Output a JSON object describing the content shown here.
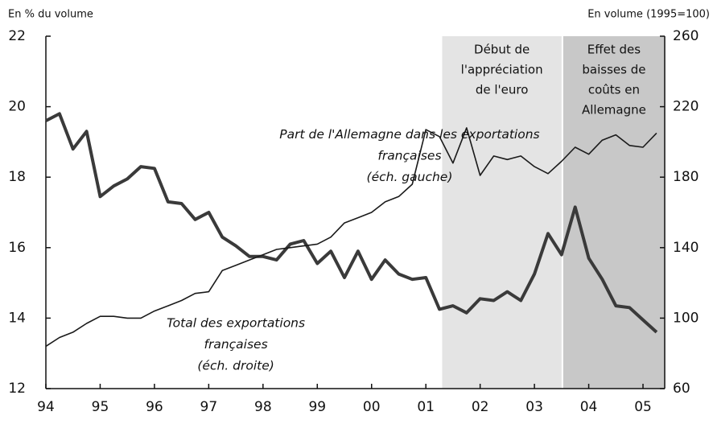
{
  "chart_data": {
    "type": "line",
    "y_label": "En % du volume",
    "y2_label": "En volume (1995=100)",
    "x": [
      1994.0,
      1994.25,
      1994.5,
      1994.75,
      1995.0,
      1995.25,
      1995.5,
      1995.75,
      1996.0,
      1996.25,
      1996.5,
      1996.75,
      1997.0,
      1997.25,
      1997.5,
      1997.75,
      1998.0,
      1998.25,
      1998.5,
      1998.75,
      1999.0,
      1999.25,
      1999.5,
      1999.75,
      2000.0,
      2000.25,
      2000.5,
      2000.75,
      2001.0,
      2001.25,
      2001.5,
      2001.75,
      2002.0,
      2002.25,
      2002.5,
      2002.75,
      2003.0,
      2003.25,
      2003.5,
      2003.75,
      2004.0,
      2004.25,
      2004.5,
      2004.75,
      2005.0,
      2005.25
    ],
    "series": [
      {
        "color": "#3a3a3a",
        "width": 4,
        "values": [
          19.6,
          19.8,
          18.8,
          19.3,
          17.45,
          17.75,
          17.95,
          18.3,
          18.25,
          17.3,
          17.25,
          16.8,
          17.0,
          16.3,
          16.05,
          15.75,
          15.75,
          15.65,
          16.1,
          16.2,
          15.55,
          15.9,
          15.15,
          15.9,
          15.1,
          15.65,
          15.25,
          15.1,
          15.15,
          14.25,
          14.35,
          14.15,
          14.55,
          14.5,
          14.75,
          14.5,
          15.25,
          16.4,
          15.8,
          17.15,
          15.7,
          15.1,
          14.35,
          14.3,
          13.95,
          13.6
        ]
      },
      {
        "color": "#1a1a1a",
        "width": 1.6,
        "axis": "y2",
        "values": [
          84,
          89,
          92,
          97,
          101,
          101,
          100,
          100,
          104,
          107,
          110,
          114,
          115,
          127,
          130,
          133,
          136,
          139,
          140,
          141,
          142,
          146,
          154,
          157,
          160,
          166,
          169,
          176,
          207,
          203,
          188,
          208,
          181,
          192,
          190,
          192,
          186,
          182,
          189,
          197,
          193,
          201,
          204,
          198,
          197,
          205
        ]
      }
    ],
    "xlim": [
      1994,
      2005.4
    ],
    "xticks": [
      {
        "value": 1994,
        "label": "94"
      },
      {
        "value": 1995,
        "label": "95"
      },
      {
        "value": 1996,
        "label": "96"
      },
      {
        "value": 1997,
        "label": "97"
      },
      {
        "value": 1998,
        "label": "98"
      },
      {
        "value": 1999,
        "label": "99"
      },
      {
        "value": 2000,
        "label": "00"
      },
      {
        "value": 2001,
        "label": "01"
      },
      {
        "value": 2002,
        "label": "02"
      },
      {
        "value": 2003,
        "label": "03"
      },
      {
        "value": 2004,
        "label": "04"
      },
      {
        "value": 2005,
        "label": "05"
      }
    ],
    "ylim": [
      12,
      22
    ],
    "yticks": [
      12,
      14,
      16,
      18,
      20,
      22
    ],
    "y2lim": [
      60,
      260
    ],
    "y2ticks": [
      60,
      100,
      140,
      180,
      220,
      260
    ],
    "shaded_regions": [
      {
        "x": [
          2001.3,
          2003.5
        ],
        "color": "#e4e4e4",
        "label": [
          "Début de",
          "l'appréciation",
          "de l'euro"
        ]
      },
      {
        "x": [
          2003.53,
          2005.4
        ],
        "color": "#c8c8c8",
        "label": [
          "Effet des",
          "baisses de",
          "coûts en",
          "Allemagne"
        ]
      }
    ],
    "annotations": [
      {
        "x": 2000.7,
        "y": 19.2,
        "lines": [
          "Part de l'Allemagne dans les exportations",
          "françaises",
          "(éch. gauche)"
        ]
      },
      {
        "x": 1997.5,
        "y": 13.85,
        "lines": [
          "Total des exportations",
          "françaises",
          "(éch. droite)"
        ]
      }
    ]
  }
}
